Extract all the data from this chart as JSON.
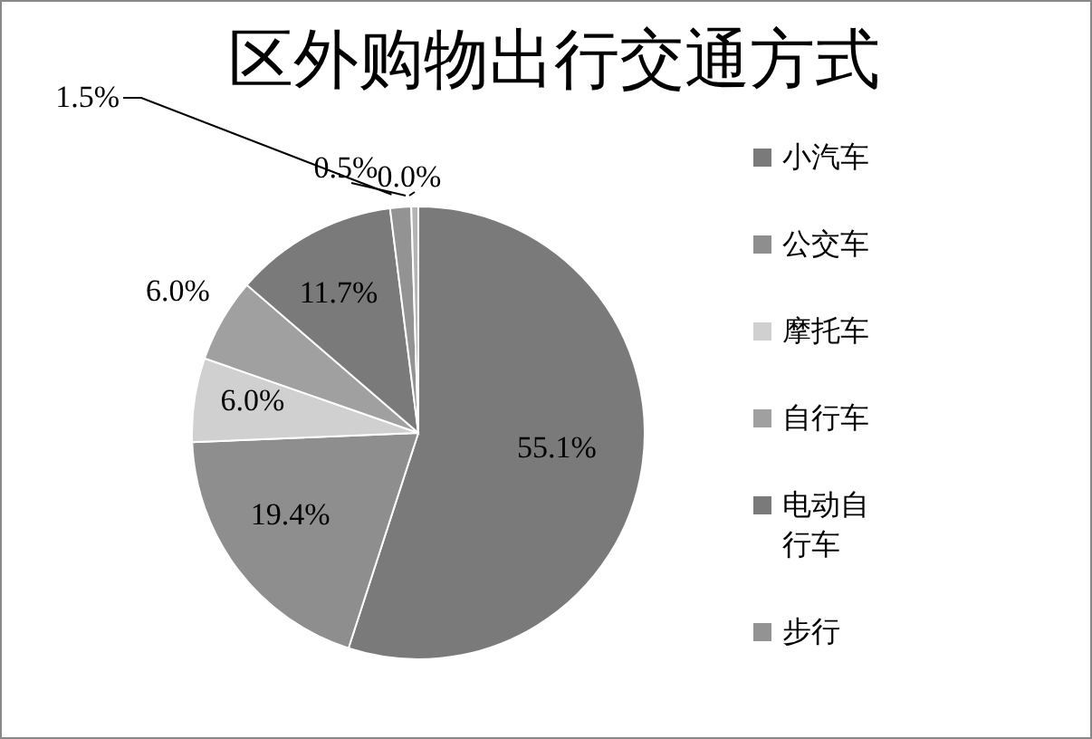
{
  "chart_data": {
    "type": "pie",
    "title": "区外购物出行交通方式",
    "categories": [
      "小汽车",
      "公交车",
      "摩托车",
      "自行车",
      "电动自行车",
      "步行",
      null,
      null
    ],
    "values": [
      55.1,
      19.4,
      6.0,
      6.0,
      11.7,
      1.5,
      0.5,
      0.0
    ],
    "colors": [
      "#7a7a7a",
      "#8e8e8e",
      "#d0d0d0",
      "#a0a0a0",
      "#7a7a7a",
      "#939393",
      "#b4b4b4",
      "#c8c8c8"
    ],
    "value_labels": [
      "55.1%",
      "19.4%",
      "6.0%",
      "6.0%",
      "11.7%",
      "1.5%",
      "0.5%",
      "0.0%"
    ],
    "legend": "right"
  }
}
